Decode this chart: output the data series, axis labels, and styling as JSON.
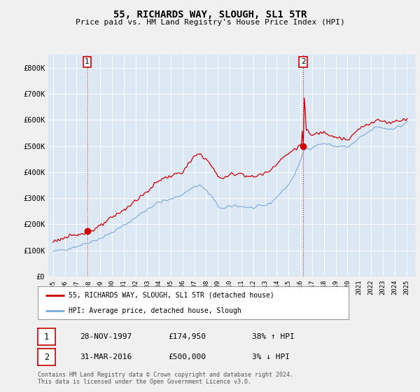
{
  "title": "55, RICHARDS WAY, SLOUGH, SL1 5TR",
  "subtitle": "Price paid vs. HM Land Registry's House Price Index (HPI)",
  "ylim": [
    0,
    850000
  ],
  "yticks": [
    0,
    100000,
    200000,
    300000,
    400000,
    500000,
    600000,
    700000,
    800000
  ],
  "ytick_labels": [
    "£0",
    "£100K",
    "£200K",
    "£300K",
    "£400K",
    "£500K",
    "£600K",
    "£700K",
    "£800K"
  ],
  "sale1": {
    "date_str": "28-NOV-1997",
    "date_x": 1997.9,
    "price": 174950,
    "label": "38% ↑ HPI"
  },
  "sale2": {
    "date_str": "31-MAR-2016",
    "date_x": 2016.25,
    "price": 500000,
    "label": "3% ↓ HPI"
  },
  "legend_label_red": "55, RICHARDS WAY, SLOUGH, SL1 5TR (detached house)",
  "legend_label_blue": "HPI: Average price, detached house, Slough",
  "footnote": "Contains HM Land Registry data © Crown copyright and database right 2024.\nThis data is licensed under the Open Government Licence v3.0.",
  "red_color": "#cc0000",
  "blue_color": "#7aaadd",
  "plot_bg_color": "#dde8f5",
  "grid_color": "#ffffff",
  "background_color": "#f0f0f0",
  "xlim_left": 1994.6,
  "xlim_right": 2025.8,
  "xtick_years": [
    1995,
    1996,
    1997,
    1998,
    1999,
    2000,
    2001,
    2002,
    2003,
    2004,
    2005,
    2006,
    2007,
    2008,
    2009,
    2010,
    2011,
    2012,
    2013,
    2014,
    2015,
    2016,
    2017,
    2018,
    2019,
    2020,
    2021,
    2022,
    2023,
    2024,
    2025
  ]
}
